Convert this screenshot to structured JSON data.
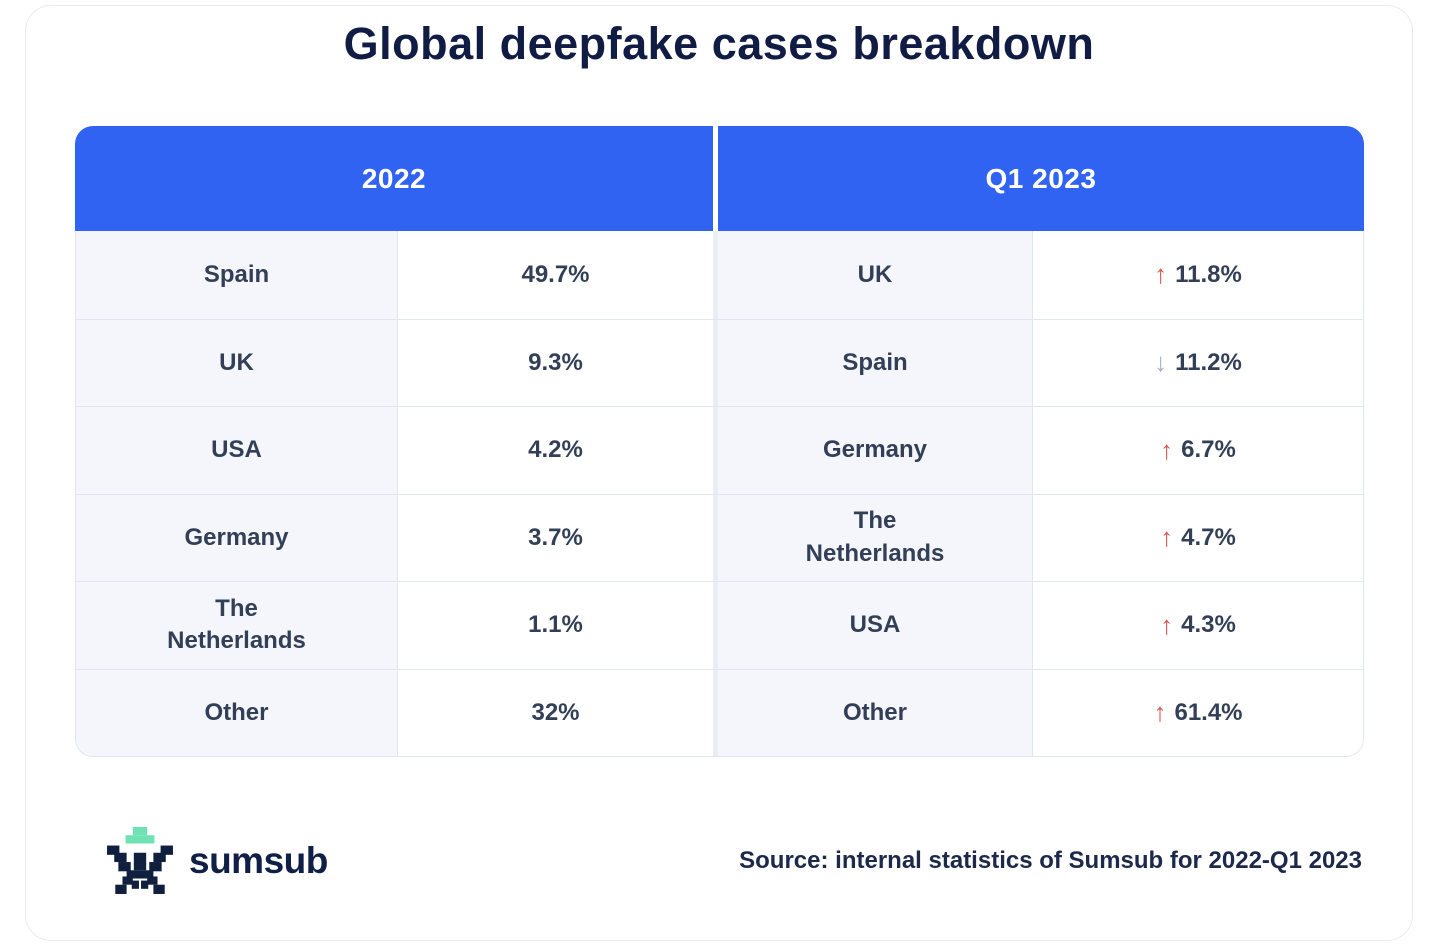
{
  "title": "Global deepfake cases breakdown",
  "table": {
    "headers": [
      "2022",
      "Q1 2023"
    ],
    "left": {
      "period": "2022",
      "rows": [
        {
          "country": "Spain",
          "value": "49.7%"
        },
        {
          "country": "UK",
          "value": "9.3%"
        },
        {
          "country": "USA",
          "value": "4.2%"
        },
        {
          "country": "Germany",
          "value": "3.7%"
        },
        {
          "country": "The Netherlands",
          "value": "1.1%"
        },
        {
          "country": "Other",
          "value": "32%"
        }
      ]
    },
    "right": {
      "period": "Q1 2023",
      "rows": [
        {
          "country": "UK",
          "value": "11.8%",
          "direction": "up"
        },
        {
          "country": "Spain",
          "value": "11.2%",
          "direction": "down"
        },
        {
          "country": "Germany",
          "value": "6.7%",
          "direction": "up"
        },
        {
          "country": "The Netherlands",
          "value": "4.7%",
          "direction": "up"
        },
        {
          "country": "USA",
          "value": "4.3%",
          "direction": "up"
        },
        {
          "country": "Other",
          "value": "61.4%",
          "direction": "up"
        }
      ]
    }
  },
  "icons": {
    "up_arrow": "↑",
    "down_arrow": "↓",
    "mascot": "sumsub-pixel-mascot"
  },
  "footer": {
    "logo_text": "sumsub",
    "source": "Source: internal statistics of Sumsub for 2022-Q1 2023"
  },
  "colors": {
    "header_blue": "#3063F1",
    "title_navy": "#111C44",
    "cell_text": "#333F57",
    "country_cell_bg": "#F4F6FB",
    "border": "#E1E6F0",
    "up_arrow_red": "#DC574C",
    "down_arrow_gray": "#A7B1C1",
    "logo_mint": "#6FE2B4",
    "logo_navy": "#0F1F3D"
  },
  "chart_data": {
    "type": "table",
    "title": "Global deepfake cases breakdown",
    "columns": [
      "2022",
      "Q1 2023"
    ],
    "series": [
      {
        "name": "2022",
        "categories": [
          "Spain",
          "UK",
          "USA",
          "Germany",
          "The Netherlands",
          "Other"
        ],
        "values": [
          49.7,
          9.3,
          4.2,
          3.7,
          1.1,
          32
        ]
      },
      {
        "name": "Q1 2023",
        "categories": [
          "UK",
          "Spain",
          "Germany",
          "The Netherlands",
          "USA",
          "Other"
        ],
        "values": [
          11.8,
          11.2,
          6.7,
          4.7,
          4.3,
          61.4
        ],
        "directions": [
          "up",
          "down",
          "up",
          "up",
          "up",
          "up"
        ]
      }
    ],
    "source": "Source: internal statistics of Sumsub for 2022-Q1 2023"
  }
}
